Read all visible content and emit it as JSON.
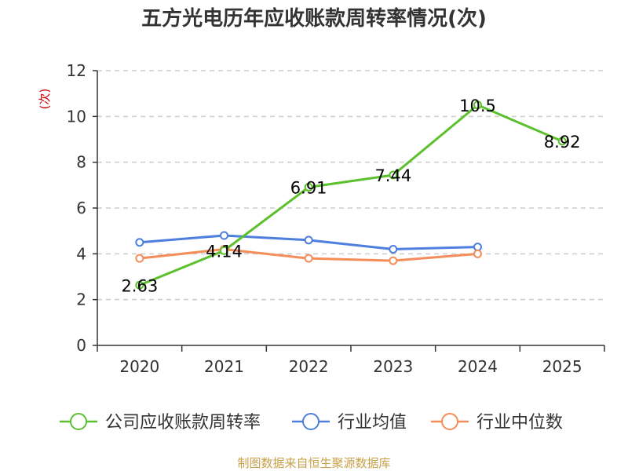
{
  "chart_data": {
    "type": "line",
    "title": "五方光电历年应收账款周转率情况(次)",
    "ylabel": "(次)",
    "xlabel": "",
    "categories": [
      "2020",
      "2021",
      "2022",
      "2023",
      "2024",
      "2025"
    ],
    "ylim": [
      0,
      12
    ],
    "yticks": [
      0,
      2,
      4,
      6,
      8,
      10,
      12
    ],
    "grid": true,
    "legend_position": "bottom",
    "series": [
      {
        "name": "公司应收账款周转率",
        "color": "#5cc02d",
        "values": [
          2.63,
          4.14,
          6.91,
          7.44,
          10.5,
          8.92
        ],
        "labels": [
          "2.63",
          "4.14",
          "6.91",
          "7.44",
          "10.5",
          "8.92"
        ]
      },
      {
        "name": "行业均值",
        "color": "#4e7fde",
        "values": [
          4.5,
          4.8,
          4.6,
          4.2,
          4.3,
          null
        ]
      },
      {
        "name": "行业中位数",
        "color": "#f58d5a",
        "values": [
          3.8,
          4.2,
          3.8,
          3.7,
          4.0,
          null
        ]
      }
    ]
  },
  "colors": {
    "axis": "#333333",
    "grid": "#cccccc",
    "unit": "#cc0000",
    "source": "#c8a04a"
  },
  "source_note": "制图数据来自恒生聚源数据库"
}
